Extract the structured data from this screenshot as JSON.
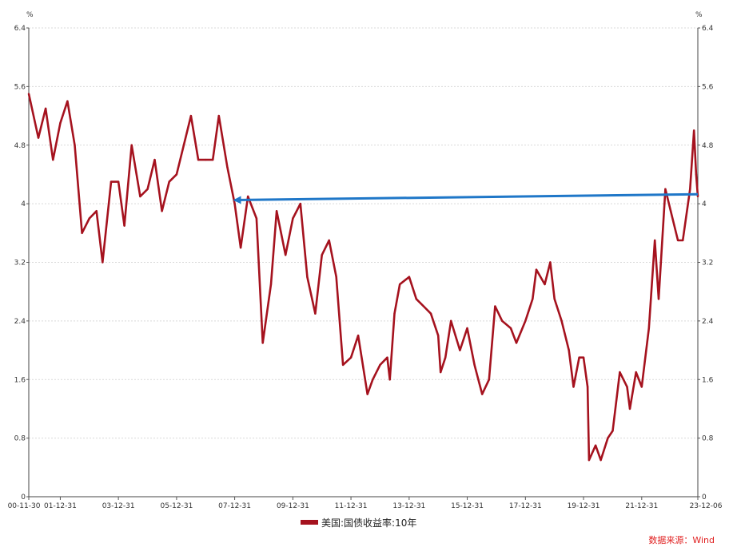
{
  "chart_data": {
    "type": "line",
    "title": "",
    "ylabel_left": "%",
    "ylabel_right": "%",
    "ylim": [
      0,
      6.4
    ],
    "yticks": [
      "0",
      "0.8",
      "1.6",
      "2.4",
      "3.2",
      "4",
      "4.8",
      "5.6",
      "6.4"
    ],
    "xticks": [
      "00-11-30",
      "01-12-31",
      "03-12-31",
      "05-12-31",
      "07-12-31",
      "09-12-31",
      "11-12-31",
      "13-12-31",
      "15-12-31",
      "17-12-31",
      "19-12-31",
      "21-12-31",
      "23-12-06"
    ],
    "grid": "horizontal dotted",
    "legend_position": "bottom",
    "series": [
      {
        "name": "美国:国债收益率:10年",
        "color": "#A5121E",
        "x": [
          "2000-11-30",
          "2001-03-31",
          "2001-06-30",
          "2001-09-30",
          "2001-12-31",
          "2002-03-31",
          "2002-06-30",
          "2002-09-30",
          "2002-12-31",
          "2003-03-31",
          "2003-06-15",
          "2003-09-30",
          "2003-12-31",
          "2004-03-15",
          "2004-06-15",
          "2004-09-30",
          "2004-12-31",
          "2005-03-31",
          "2005-06-30",
          "2005-09-30",
          "2005-12-31",
          "2006-03-31",
          "2006-06-30",
          "2006-09-30",
          "2006-12-31",
          "2007-03-31",
          "2007-06-15",
          "2007-09-30",
          "2007-12-31",
          "2008-03-15",
          "2008-06-15",
          "2008-09-30",
          "2008-12-18",
          "2009-03-31",
          "2009-06-10",
          "2009-09-30",
          "2009-12-31",
          "2010-04-05",
          "2010-06-30",
          "2010-10-08",
          "2010-12-31",
          "2011-03-31",
          "2011-06-30",
          "2011-09-22",
          "2011-12-31",
          "2012-03-31",
          "2012-07-25",
          "2012-09-30",
          "2012-12-31",
          "2013-03-31",
          "2013-05-02",
          "2013-06-30",
          "2013-09-05",
          "2013-12-31",
          "2014-03-31",
          "2014-06-30",
          "2014-09-30",
          "2014-12-31",
          "2015-01-30",
          "2015-03-31",
          "2015-06-10",
          "2015-09-30",
          "2015-12-31",
          "2016-03-31",
          "2016-07-05",
          "2016-09-30",
          "2016-12-15",
          "2017-03-13",
          "2017-06-30",
          "2017-09-08",
          "2017-12-31",
          "2018-03-31",
          "2018-05-17",
          "2018-08-31",
          "2018-11-08",
          "2018-12-31",
          "2019-03-31",
          "2019-06-30",
          "2019-08-27",
          "2019-11-07",
          "2019-12-31",
          "2020-02-20",
          "2020-03-09",
          "2020-05-31",
          "2020-08-04",
          "2020-10-31",
          "2020-12-31",
          "2021-03-31",
          "2021-06-30",
          "2021-08-04",
          "2021-10-21",
          "2021-12-31",
          "2022-03-31",
          "2022-06-14",
          "2022-08-01",
          "2022-10-24",
          "2022-12-31",
          "2023-03-31",
          "2023-05-31",
          "2023-08-31",
          "2023-10-19",
          "2023-11-15",
          "2023-12-06"
        ],
        "values": [
          5.5,
          4.9,
          5.3,
          4.6,
          5.1,
          5.4,
          4.8,
          3.6,
          3.8,
          3.9,
          3.2,
          4.3,
          4.3,
          3.7,
          4.8,
          4.1,
          4.2,
          4.6,
          3.9,
          4.3,
          4.4,
          4.8,
          5.2,
          4.6,
          4.6,
          4.6,
          5.2,
          4.5,
          4.0,
          3.4,
          4.1,
          3.8,
          2.1,
          2.9,
          3.9,
          3.3,
          3.8,
          4.0,
          3.0,
          2.5,
          3.3,
          3.5,
          3.0,
          1.8,
          1.9,
          2.2,
          1.4,
          1.6,
          1.8,
          1.9,
          1.6,
          2.5,
          2.9,
          3.0,
          2.7,
          2.6,
          2.5,
          2.2,
          1.7,
          1.9,
          2.4,
          2.0,
          2.3,
          1.8,
          1.4,
          1.6,
          2.6,
          2.4,
          2.3,
          2.1,
          2.4,
          2.7,
          3.1,
          2.9,
          3.2,
          2.7,
          2.4,
          2.0,
          1.5,
          1.9,
          1.9,
          1.5,
          0.5,
          0.7,
          0.5,
          0.8,
          0.9,
          1.7,
          1.5,
          1.2,
          1.7,
          1.5,
          2.3,
          3.5,
          2.7,
          4.2,
          3.9,
          3.5,
          3.5,
          4.2,
          5.0,
          4.4,
          4.1
        ]
      }
    ],
    "annotation": {
      "type": "arrow",
      "color": "#1F77C8",
      "from": {
        "x": "2023-12-06",
        "y": 4.13
      },
      "to": {
        "x": "2007-12-31",
        "y": 4.05
      }
    }
  },
  "source": "数据来源：Wind"
}
